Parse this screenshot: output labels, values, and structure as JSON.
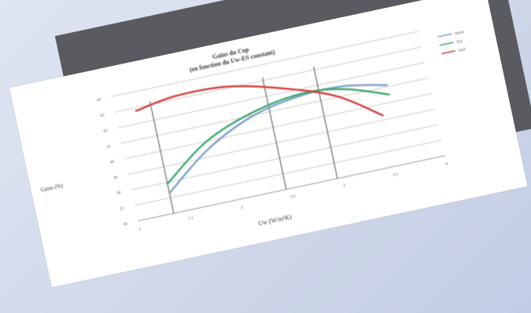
{
  "chart_data": {
    "type": "line",
    "title": "Gains du Cop",
    "subtitle": "(en fonction du Uw-ES constant)",
    "xlabel": "Uw (W/m²K)",
    "ylabel": "Gains (%)",
    "x_ticks": [
      "1",
      "1.5",
      "2",
      "2.5",
      "3",
      "3.5",
      "4"
    ],
    "y_ticks": [
      "36",
      "37",
      "38",
      "39",
      "40",
      "41",
      "42",
      "43",
      "44"
    ],
    "xlim": [
      1,
      4
    ],
    "ylim": [
      36,
      44
    ],
    "grid": true,
    "legend_position": "right",
    "series": [
      {
        "name": "Nord",
        "color": "#7f9fcc",
        "points": [
          [
            1.35,
            37.3
          ],
          [
            1.8,
            39.5
          ],
          [
            2.3,
            41.0
          ],
          [
            2.8,
            41.6
          ],
          [
            3.2,
            41.6
          ],
          [
            3.6,
            41.1
          ]
        ]
      },
      {
        "name": "Est",
        "color": "#3ca86a",
        "points": [
          [
            1.35,
            37.9
          ],
          [
            1.8,
            40.0
          ],
          [
            2.3,
            41.2
          ],
          [
            2.8,
            41.7
          ],
          [
            3.2,
            41.4
          ],
          [
            3.6,
            40.5
          ]
        ]
      },
      {
        "name": "Sud",
        "color": "#d63a3a",
        "points": [
          [
            1.2,
            42.8
          ],
          [
            1.6,
            43.2
          ],
          [
            2.1,
            43.1
          ],
          [
            2.6,
            42.3
          ],
          [
            3.1,
            41.1
          ],
          [
            3.5,
            39.3
          ]
        ]
      }
    ],
    "reference_lines_x": [
      1.35,
      2.45,
      2.95
    ]
  }
}
